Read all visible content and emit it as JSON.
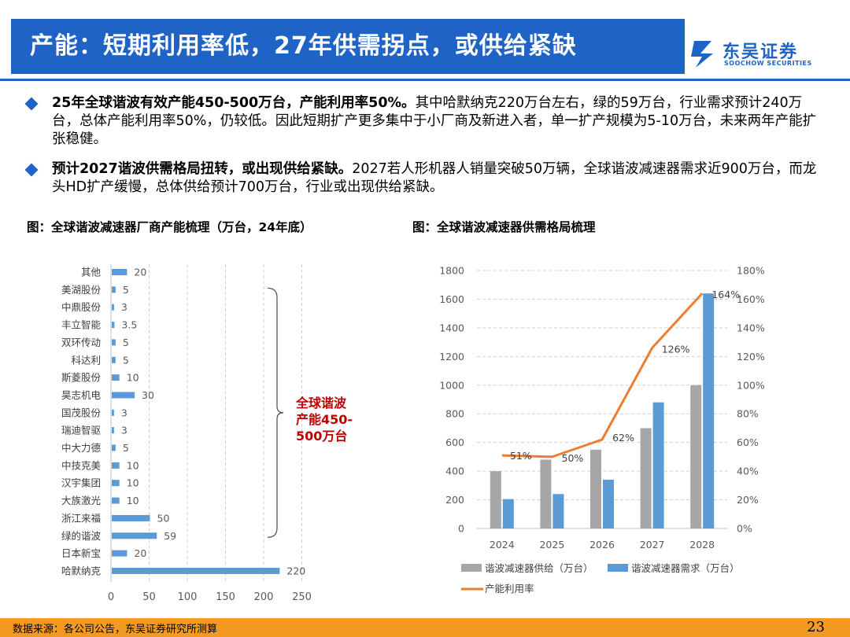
{
  "header": {
    "title": "产能：短期利用率低，27年供需拐点，或供给紧缺",
    "logo_cn": "东吴证券",
    "logo_en": "SOOCHOW SECURITIES"
  },
  "bullets": [
    {
      "bold": "25年全球谐波有效产能450-500万台，产能利用率50%。",
      "text": "其中哈默纳克220万台左右，绿的59万台，行业需求预计240万台，总体产能利用率50%，仍较低。因此短期扩产更多集中于小厂商及新进入者，单一扩产规模为5-10万台，未来两年产能扩张稳健。"
    },
    {
      "bold": "预计2027谐波供需格局扭转，或出现供给紧缺。",
      "text": "2027若人形机器人销量突破50万辆，全球谐波减速器需求近900万台，而龙头HD扩产缓慢，总体供给预计700万台，行业或出现供给紧缺。"
    }
  ],
  "figures": {
    "left_title": "图：全球谐波减速器厂商产能梳理（万台，24年底）",
    "right_title": "图：全球谐波减速器供需格局梳理"
  },
  "chart_data": [
    {
      "type": "bar",
      "orientation": "horizontal",
      "categories": [
        "其他",
        "美湖股份",
        "中鼎股份",
        "丰立智能",
        "双环传动",
        "科达利",
        "斯菱股份",
        "昊志机电",
        "国茂股份",
        "瑞迪智驱",
        "中大力德",
        "中技克美",
        "汉宇集团",
        "大族激光",
        "浙江来福",
        "绿的谐波",
        "日本新宝",
        "哈默纳克"
      ],
      "values": [
        20,
        5,
        3,
        3.5,
        5,
        5,
        10,
        30,
        3,
        3,
        5,
        10,
        10,
        10,
        50,
        59,
        20,
        220
      ],
      "value_labels": [
        "20",
        "5",
        "3",
        "3.5",
        "5",
        "5",
        "10",
        "30",
        "3",
        "3",
        "5",
        "10",
        "10",
        "10",
        "50",
        "59",
        "20",
        "220"
      ],
      "xlim": [
        0,
        250
      ],
      "xticks": [
        "0",
        "50",
        "100",
        "150",
        "200",
        "250"
      ],
      "grid": "vertical-dashed",
      "bar_color": "#5b9bd5",
      "annotation": {
        "lines": [
          "全球谐波",
          "产能450-",
          "500万台"
        ],
        "color": "#c00000",
        "bracket_from": "美湖股份",
        "bracket_to": "绿的谐波"
      }
    },
    {
      "type": "bar+line",
      "categories": [
        "2024",
        "2025",
        "2026",
        "2027",
        "2028"
      ],
      "series": [
        {
          "name": "谐波减速器供给（万台）",
          "kind": "bar",
          "axis": "left",
          "color": "#a6a6a6",
          "values": [
            400,
            480,
            550,
            700,
            1000
          ]
        },
        {
          "name": "谐波减速器需求（万台）",
          "kind": "bar",
          "axis": "left",
          "color": "#5b9bd5",
          "values": [
            205,
            240,
            340,
            880,
            1640
          ]
        },
        {
          "name": "产能利用率",
          "kind": "line",
          "axis": "right",
          "color": "#ed7d31",
          "values": [
            51,
            50,
            62,
            126,
            164
          ],
          "labels": [
            "51%",
            "50%",
            "62%",
            "126%",
            "164%"
          ]
        }
      ],
      "ylim_left": [
        0,
        1800
      ],
      "yticks_left": [
        "0",
        "200",
        "400",
        "600",
        "800",
        "1000",
        "1200",
        "1400",
        "1600",
        "1800"
      ],
      "ylim_right": [
        0,
        180
      ],
      "yticks_right": [
        "0%",
        "20%",
        "40%",
        "60%",
        "80%",
        "100%",
        "120%",
        "140%",
        "160%",
        "180%"
      ],
      "grid": "horizontal-dashed",
      "legend": "bottom"
    }
  ],
  "footer": {
    "source": "数据来源：各公司公告，东吴证券研究所测算",
    "page": "23"
  }
}
